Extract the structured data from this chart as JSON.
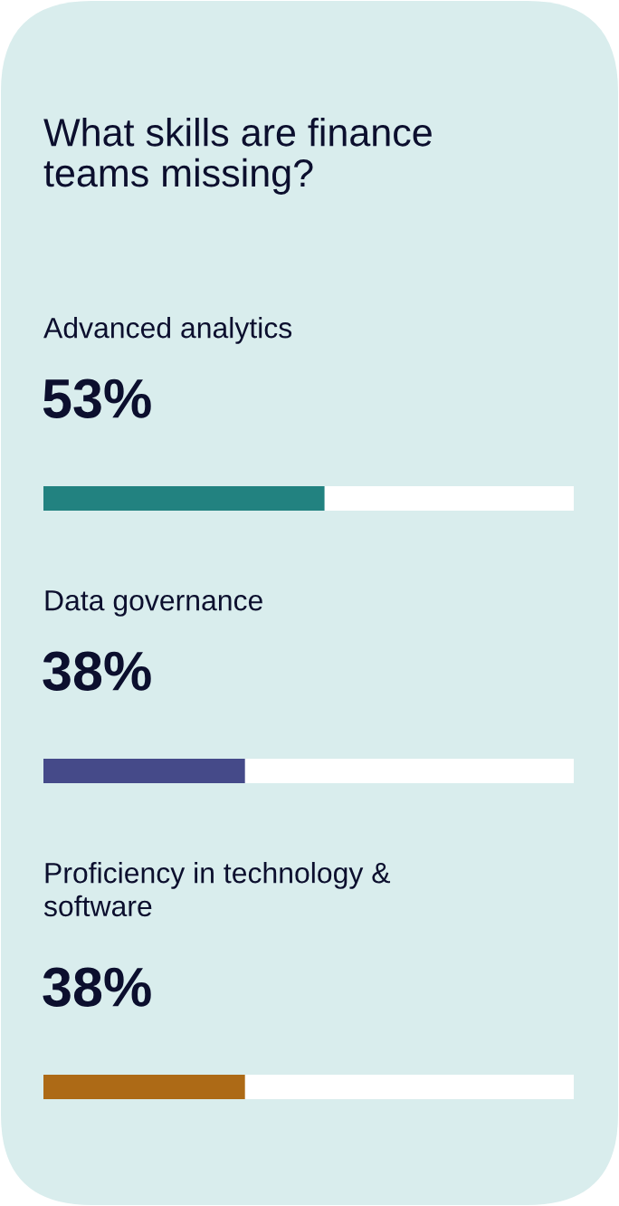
{
  "chart_data": {
    "type": "bar",
    "orientation": "horizontal",
    "title": "What skills are finance\nteams missing?",
    "categories": [
      "Advanced analytics",
      "Data governance",
      "Proficiency in technology &\nsoftware"
    ],
    "values": [
      53,
      38,
      38
    ],
    "colors": [
      "#228280",
      "#454a89",
      "#ad6a16"
    ],
    "value_labels": [
      "53%",
      "38%",
      "38%"
    ],
    "xlim": [
      0,
      100
    ]
  }
}
